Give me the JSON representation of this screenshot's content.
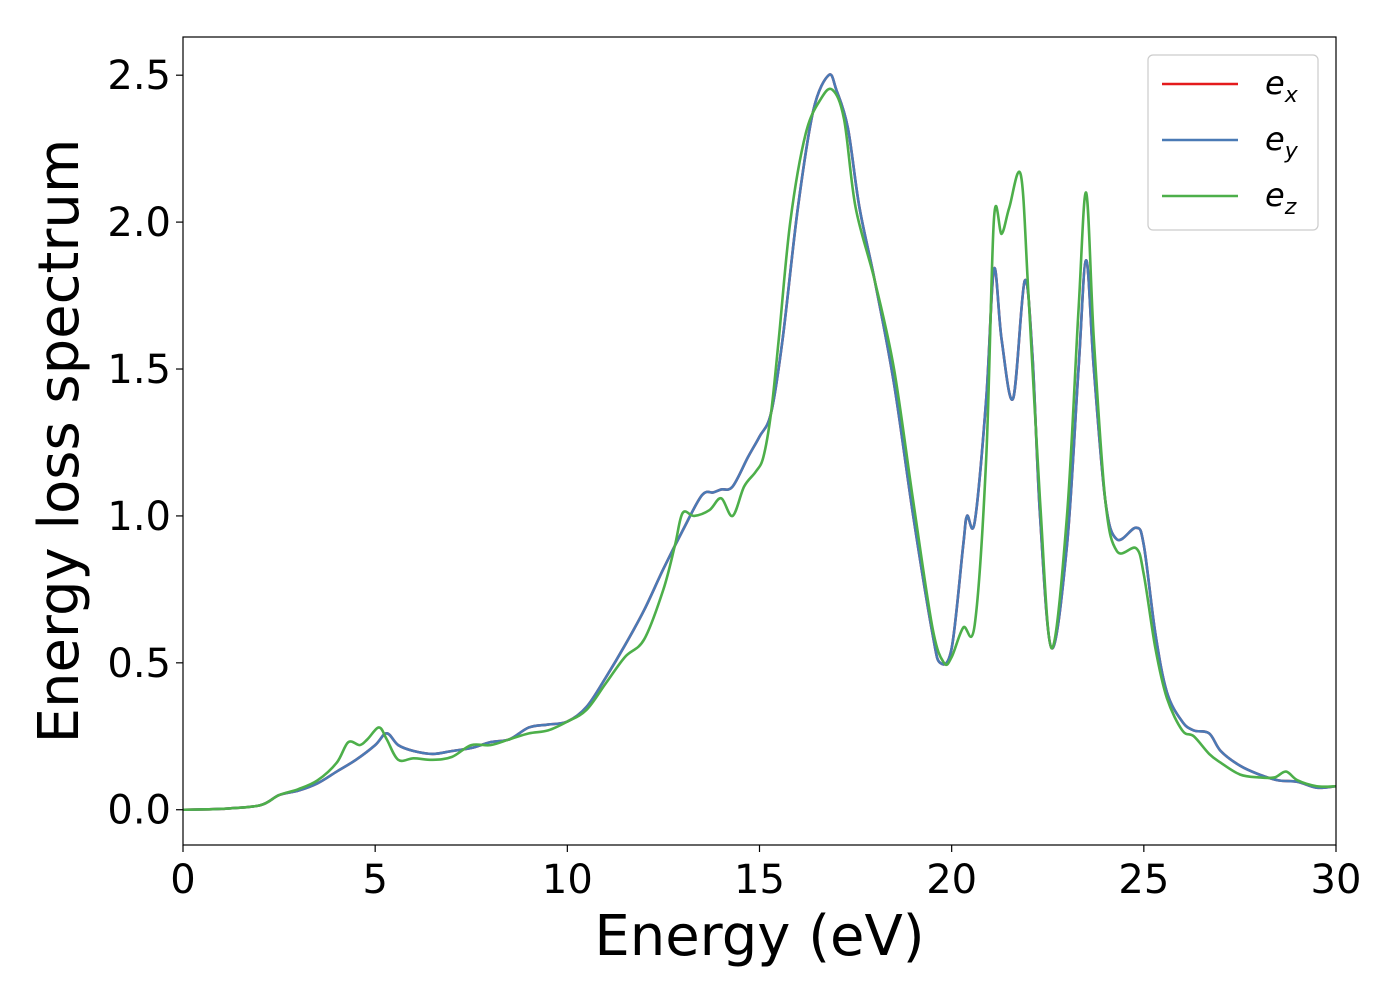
{
  "chart_data": {
    "type": "line",
    "xlabel": "Energy (eV)",
    "ylabel": "Energy loss spectrum",
    "xlim": [
      0,
      30
    ],
    "ylim": [
      -0.12,
      2.63
    ],
    "xticks": [
      0,
      5,
      10,
      15,
      20,
      25,
      30
    ],
    "yticks": [
      0.0,
      0.5,
      1.0,
      1.5,
      2.0,
      2.5
    ],
    "xtick_labels": [
      "0",
      "5",
      "10",
      "15",
      "20",
      "25",
      "30"
    ],
    "ytick_labels": [
      "0.0",
      "0.5",
      "1.0",
      "1.5",
      "2.0",
      "2.5"
    ],
    "grid": false,
    "legend_position": "top-right",
    "series": [
      {
        "name": "e_x",
        "label_base": "e",
        "label_sub": "x",
        "color": "#e41a1c",
        "x": [
          0,
          1,
          2,
          2.5,
          3,
          3.5,
          4,
          4.5,
          5,
          5.3,
          5.6,
          6,
          6.5,
          7,
          7.5,
          8,
          8.5,
          9,
          9.5,
          10,
          10.5,
          11,
          11.5,
          12,
          12.5,
          13,
          13.5,
          13.8,
          14,
          14.3,
          14.7,
          15,
          15.3,
          15.6,
          16,
          16.4,
          16.8,
          17,
          17.3,
          17.6,
          18,
          18.5,
          19,
          19.5,
          19.7,
          20,
          20.3,
          20.4,
          20.6,
          20.9,
          21.1,
          21.3,
          21.6,
          21.9,
          22.1,
          22.3,
          22.6,
          23,
          23.3,
          23.5,
          23.7,
          24,
          24.3,
          24.8,
          25,
          25.3,
          25.6,
          26,
          26.3,
          26.7,
          27,
          27.5,
          28,
          28.5,
          29,
          29.5,
          30
        ],
        "y": [
          0.0,
          0.003,
          0.015,
          0.05,
          0.065,
          0.09,
          0.13,
          0.17,
          0.22,
          0.26,
          0.22,
          0.2,
          0.19,
          0.2,
          0.21,
          0.23,
          0.24,
          0.28,
          0.29,
          0.3,
          0.35,
          0.45,
          0.56,
          0.68,
          0.82,
          0.95,
          1.07,
          1.08,
          1.09,
          1.1,
          1.2,
          1.27,
          1.35,
          1.6,
          2.05,
          2.38,
          2.5,
          2.45,
          2.32,
          2.05,
          1.8,
          1.45,
          1.0,
          0.6,
          0.5,
          0.55,
          0.9,
          1.0,
          0.98,
          1.4,
          1.84,
          1.6,
          1.4,
          1.8,
          1.55,
          1.0,
          0.55,
          0.9,
          1.5,
          1.87,
          1.5,
          1.05,
          0.92,
          0.96,
          0.9,
          0.6,
          0.4,
          0.3,
          0.27,
          0.26,
          0.2,
          0.15,
          0.12,
          0.1,
          0.095,
          0.075,
          0.08
        ]
      },
      {
        "name": "e_y",
        "label_base": "e",
        "label_sub": "y",
        "color": "#4a7ab5",
        "x": [
          0,
          1,
          2,
          2.5,
          3,
          3.5,
          4,
          4.5,
          5,
          5.3,
          5.6,
          6,
          6.5,
          7,
          7.5,
          8,
          8.5,
          9,
          9.5,
          10,
          10.5,
          11,
          11.5,
          12,
          12.5,
          13,
          13.5,
          13.8,
          14,
          14.3,
          14.7,
          15,
          15.3,
          15.6,
          16,
          16.4,
          16.8,
          17,
          17.3,
          17.6,
          18,
          18.5,
          19,
          19.5,
          19.7,
          20,
          20.3,
          20.4,
          20.6,
          20.9,
          21.1,
          21.3,
          21.6,
          21.9,
          22.1,
          22.3,
          22.6,
          23,
          23.3,
          23.5,
          23.7,
          24,
          24.3,
          24.8,
          25,
          25.3,
          25.6,
          26,
          26.3,
          26.7,
          27,
          27.5,
          28,
          28.5,
          29,
          29.5,
          30
        ],
        "y": [
          0.0,
          0.003,
          0.015,
          0.05,
          0.065,
          0.09,
          0.13,
          0.17,
          0.22,
          0.26,
          0.22,
          0.2,
          0.19,
          0.2,
          0.21,
          0.23,
          0.24,
          0.28,
          0.29,
          0.3,
          0.35,
          0.45,
          0.56,
          0.68,
          0.82,
          0.95,
          1.07,
          1.08,
          1.09,
          1.1,
          1.2,
          1.27,
          1.35,
          1.6,
          2.05,
          2.38,
          2.5,
          2.45,
          2.32,
          2.05,
          1.8,
          1.45,
          1.0,
          0.6,
          0.5,
          0.55,
          0.9,
          1.0,
          0.98,
          1.4,
          1.84,
          1.6,
          1.4,
          1.8,
          1.55,
          1.0,
          0.55,
          0.9,
          1.5,
          1.87,
          1.5,
          1.05,
          0.92,
          0.96,
          0.9,
          0.6,
          0.4,
          0.3,
          0.27,
          0.26,
          0.2,
          0.15,
          0.12,
          0.1,
          0.095,
          0.075,
          0.08
        ]
      },
      {
        "name": "e_z",
        "label_base": "e",
        "label_sub": "z",
        "color": "#4daf4a",
        "x": [
          0,
          1,
          2,
          2.5,
          3,
          3.5,
          4,
          4.3,
          4.6,
          4.8,
          5.1,
          5.3,
          5.6,
          6,
          6.5,
          7,
          7.5,
          8,
          8.5,
          9,
          9.5,
          10,
          10.5,
          11,
          11.5,
          12,
          12.5,
          12.8,
          13,
          13.3,
          13.7,
          14,
          14.3,
          14.6,
          14.9,
          15.1,
          15.3,
          15.5,
          15.8,
          16.2,
          16.6,
          16.9,
          17.2,
          17.5,
          18,
          18.5,
          19,
          19.5,
          19.8,
          20,
          20.3,
          20.6,
          20.9,
          21.1,
          21.3,
          21.5,
          21.8,
          22,
          22.3,
          22.6,
          23,
          23.3,
          23.5,
          23.7,
          24,
          24.3,
          24.8,
          25,
          25.3,
          25.6,
          26,
          26.3,
          26.7,
          27,
          27.5,
          28,
          28.4,
          28.7,
          29,
          29.5,
          30
        ],
        "y": [
          0.0,
          0.003,
          0.015,
          0.05,
          0.07,
          0.1,
          0.16,
          0.23,
          0.22,
          0.24,
          0.28,
          0.24,
          0.17,
          0.175,
          0.17,
          0.18,
          0.22,
          0.22,
          0.24,
          0.26,
          0.27,
          0.3,
          0.34,
          0.43,
          0.52,
          0.58,
          0.75,
          0.9,
          1.01,
          1.0,
          1.02,
          1.06,
          1.0,
          1.1,
          1.15,
          1.2,
          1.35,
          1.6,
          2.0,
          2.3,
          2.42,
          2.45,
          2.35,
          2.05,
          1.8,
          1.5,
          1.05,
          0.62,
          0.5,
          0.52,
          0.62,
          0.63,
          1.2,
          2.01,
          1.96,
          2.05,
          2.16,
          1.75,
          1.05,
          0.55,
          1.0,
          1.7,
          2.1,
          1.6,
          1.05,
          0.88,
          0.89,
          0.8,
          0.55,
          0.38,
          0.27,
          0.25,
          0.19,
          0.16,
          0.12,
          0.11,
          0.11,
          0.13,
          0.1,
          0.08,
          0.08
        ]
      }
    ]
  }
}
